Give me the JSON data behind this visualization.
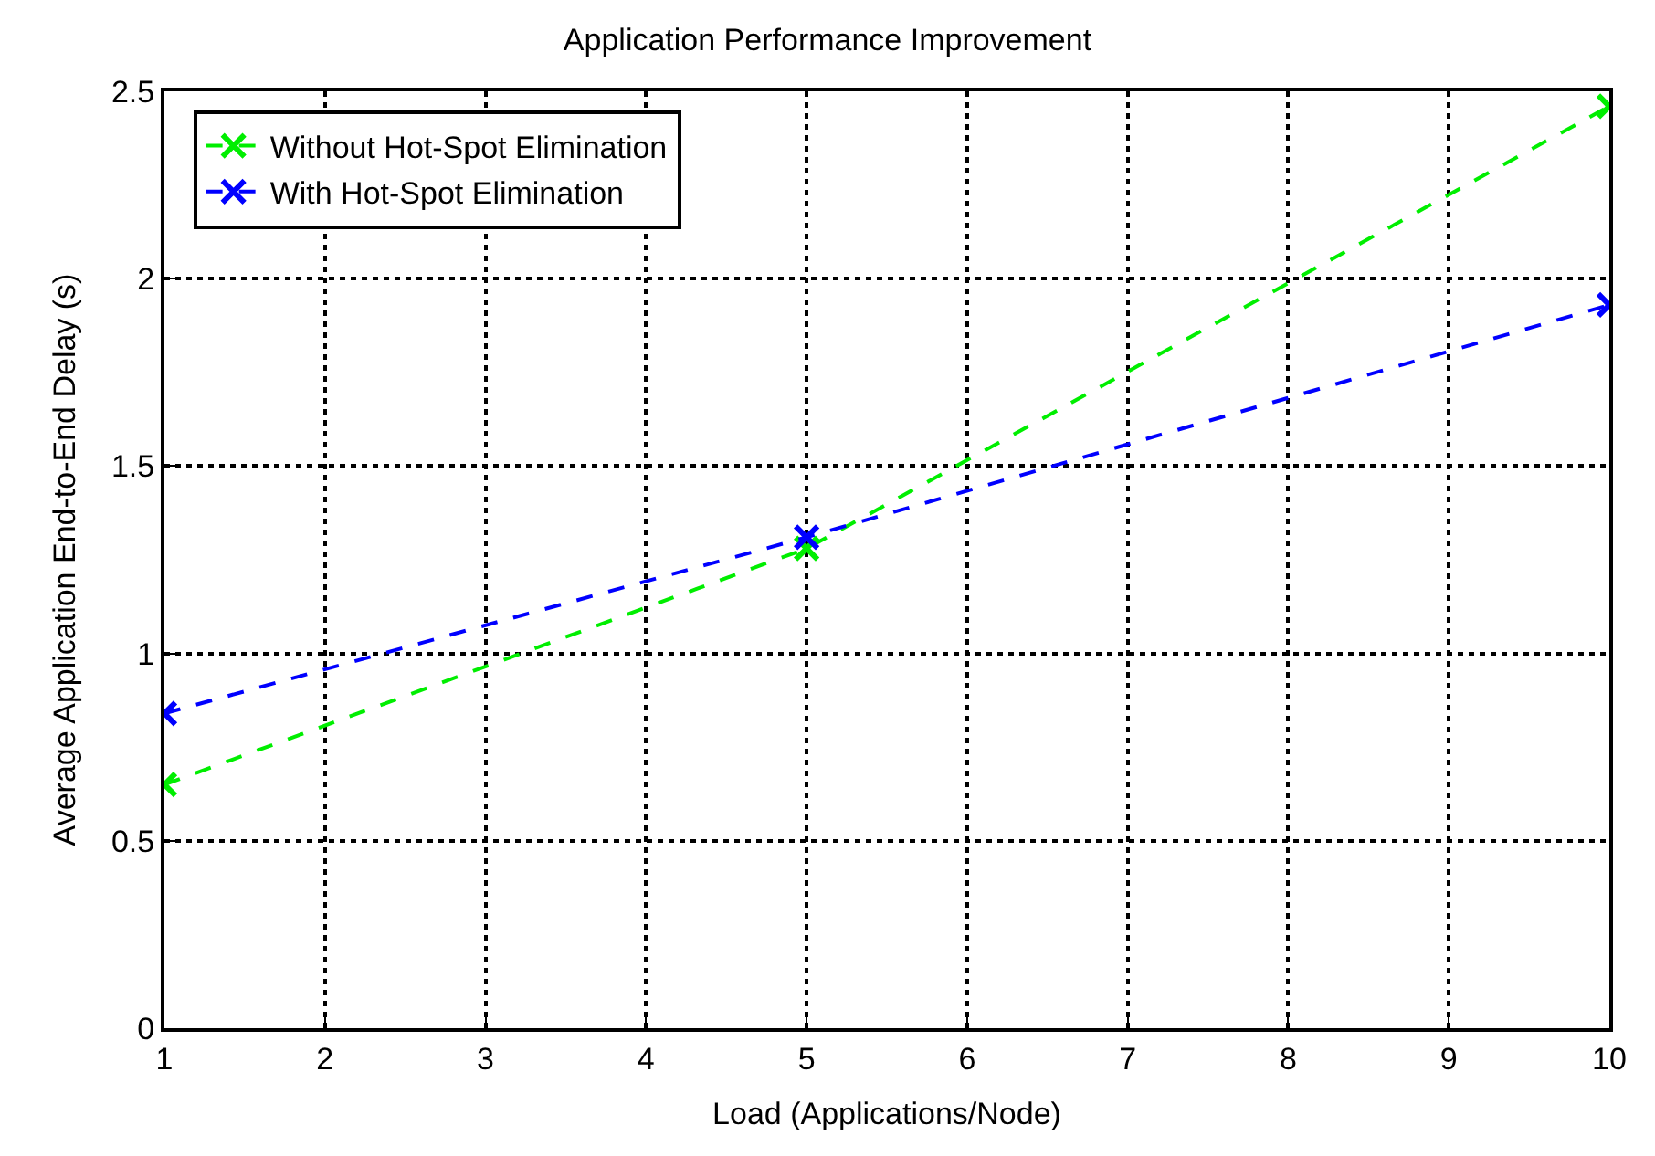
{
  "chart_data": {
    "type": "line",
    "title": "Application Performance Improvement",
    "xlabel": "Load (Applications/Node)",
    "ylabel": "Average Application End-to-End Delay (s)",
    "x": [
      1,
      5,
      10
    ],
    "series": [
      {
        "name": "Without Hot-Spot Elimination",
        "color": "#00ee00",
        "values": [
          0.65,
          1.28,
          2.46
        ],
        "marker": "cross"
      },
      {
        "name": "With Hot-Spot Elimination",
        "color": "#0000ff",
        "values": [
          0.84,
          1.31,
          1.93
        ],
        "marker": "cross"
      }
    ],
    "xlim": [
      1,
      10
    ],
    "xticks": [
      1,
      2,
      3,
      4,
      5,
      6,
      7,
      8,
      9,
      10
    ],
    "ylim": [
      0,
      2.5
    ],
    "yticks": [
      0,
      0.5,
      1,
      1.5,
      2,
      2.5
    ],
    "grid": true,
    "legend": "top left",
    "line_style": "dashed"
  }
}
